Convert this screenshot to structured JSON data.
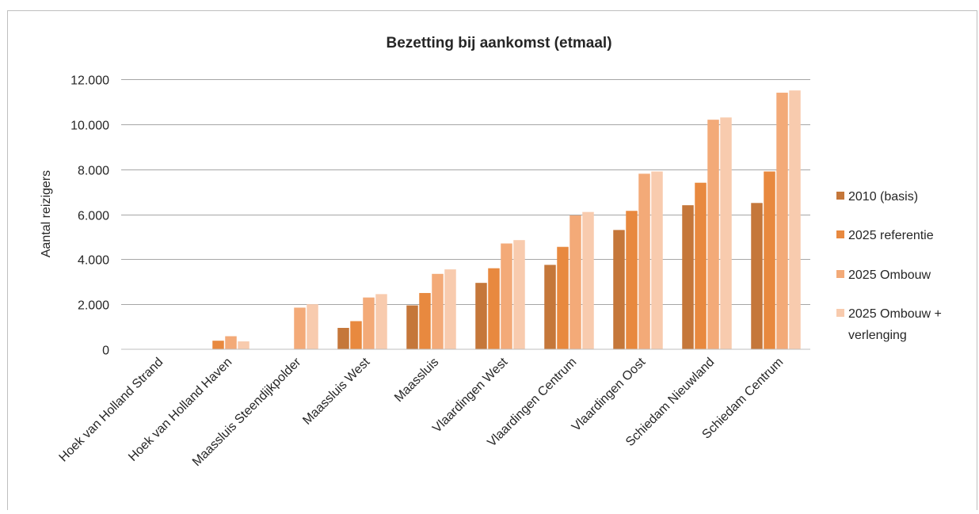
{
  "chart_data": {
    "type": "bar",
    "title": "Bezetting bij aankomst (etmaal)",
    "xlabel": "",
    "ylabel": "Aantal reizigers",
    "ylim": [
      0,
      12000
    ],
    "yticks": [
      0,
      2000,
      4000,
      6000,
      8000,
      10000,
      12000
    ],
    "ytick_labels": [
      "0",
      "2.000",
      "4.000",
      "6.000",
      "8.000",
      "10.000",
      "12.000"
    ],
    "grid": true,
    "legend_position": "right",
    "categories": [
      "Hoek van Holland Strand",
      "Hoek van Holland Haven",
      "Maassluis Steendijkpolder",
      "Maassluis West",
      "Maassluis",
      "Vlaardingen West",
      "Vlaardingen Centrum",
      "Vlaardingen Oost",
      "Schiedam Nieuwland",
      "Schiedam Centrum"
    ],
    "series": [
      {
        "name": "2010 (basis)",
        "color": "#C5773A",
        "values": [
          0,
          0,
          0,
          950,
          1950,
          2950,
          3750,
          5300,
          6400,
          6500
        ]
      },
      {
        "name": "2025 referentie",
        "color": "#E8893F",
        "values": [
          0,
          380,
          0,
          1250,
          2500,
          3600,
          4550,
          6150,
          7400,
          7900
        ]
      },
      {
        "name": "2025 Ombouw",
        "color": "#F3AA78",
        "values": [
          0,
          580,
          1850,
          2300,
          3350,
          4700,
          5950,
          7800,
          10200,
          11400
        ]
      },
      {
        "name": "2025 Ombouw + verlenging",
        "color": "#F8CBAE",
        "values": [
          0,
          350,
          2000,
          2450,
          3550,
          4850,
          6100,
          7900,
          10300,
          11500
        ]
      }
    ],
    "legend_labels": [
      [
        "2010 (basis)"
      ],
      [
        "2025 referentie"
      ],
      [
        "2025 Ombouw"
      ],
      [
        "2025 Ombouw +",
        "verlenging"
      ]
    ]
  }
}
